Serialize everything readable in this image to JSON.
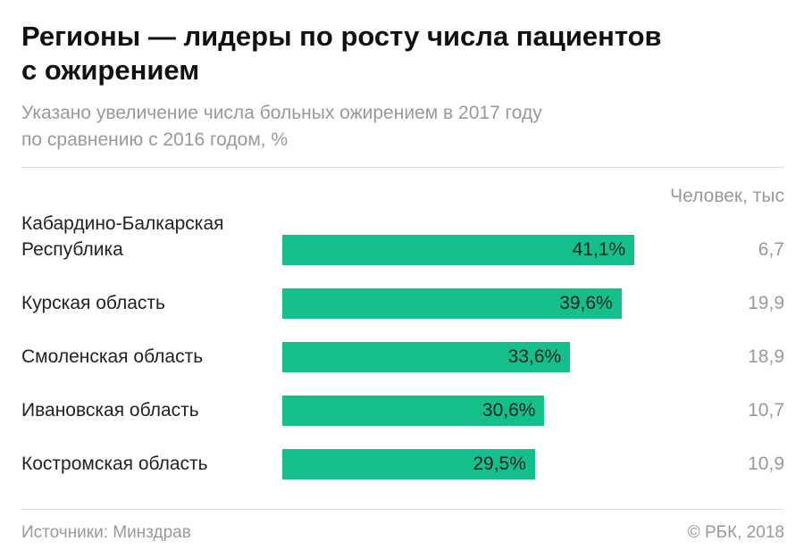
{
  "chart_data": {
    "type": "bar",
    "title": "Регионы — лидеры по росту числа пациентов\nс ожирением",
    "subtitle": "Указано увеличение числа больных ожирением в 2017 году\nпо сравнению с 2016 годом, %",
    "categories": [
      "Кабардино-Балкарская\nРеспублика",
      "Курская область",
      "Смоленская область",
      "Ивановская область",
      "Костромская область"
    ],
    "values": [
      41.1,
      39.6,
      33.6,
      30.6,
      29.5
    ],
    "value_labels": [
      "41,1%",
      "39,6%",
      "33,6%",
      "30,6%",
      "29,5%"
    ],
    "color": "#14bf8c",
    "extra_column": {
      "title": "Человек, тыс",
      "values": [
        6.7,
        19.9,
        18.9,
        10.7,
        10.9
      ],
      "value_labels": [
        "6,7",
        "19,9",
        "18,9",
        "10,7",
        "10,9"
      ]
    },
    "source": "Источники: Минздрав",
    "credit": "© РБК, 2018"
  }
}
